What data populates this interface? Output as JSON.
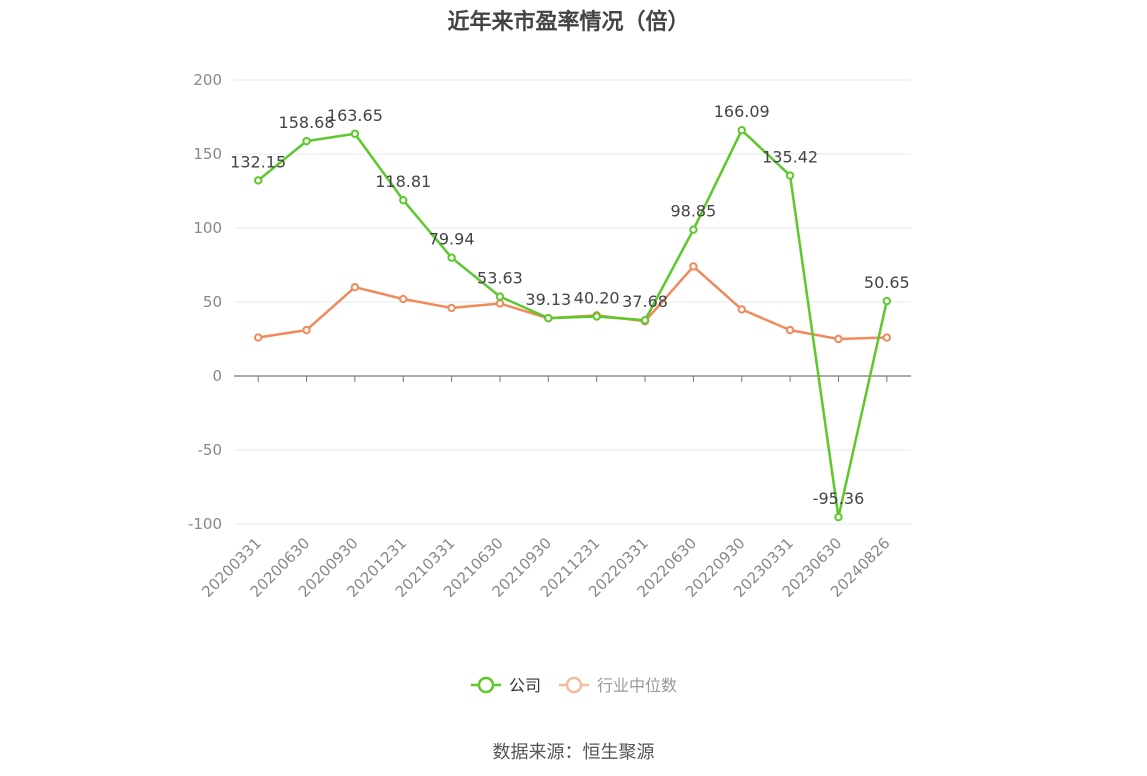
{
  "title": "近年来市盈率情况（倍）",
  "source": "数据来源：恒生聚源",
  "chart_data": {
    "type": "line",
    "title": "近年来市盈率情况（倍）",
    "xlabel": "",
    "ylabel": "",
    "categories": [
      "20200331",
      "20200630",
      "20200930",
      "20201231",
      "20210331",
      "20210630",
      "20210930",
      "20211231",
      "20220331",
      "20220630",
      "20220930",
      "20230331",
      "20230630",
      "20240826"
    ],
    "ylim": [
      -100,
      200
    ],
    "yticks": [
      -100,
      -50,
      0,
      50,
      100,
      150,
      200
    ],
    "grid": true,
    "legend_position": "bottom",
    "series": [
      {
        "name": "公司",
        "color": "#5cc82a",
        "values": [
          132.15,
          158.68,
          163.65,
          118.81,
          79.94,
          53.63,
          39.13,
          40.2,
          37.68,
          98.85,
          166.09,
          135.42,
          -95.36,
          50.65
        ],
        "labels": [
          "132.15",
          "158.68",
          "163.65",
          "118.81",
          "79.94",
          "53.63",
          "39.13",
          "40.20",
          "37.68",
          "98.85",
          "166.09",
          "135.42",
          "-95.36",
          "50.65"
        ]
      },
      {
        "name": "行业中位数",
        "color": "#f08a5a",
        "values": [
          26,
          31,
          60,
          52,
          46,
          49,
          39,
          41,
          37,
          74,
          45,
          31,
          25,
          26
        ]
      }
    ]
  }
}
